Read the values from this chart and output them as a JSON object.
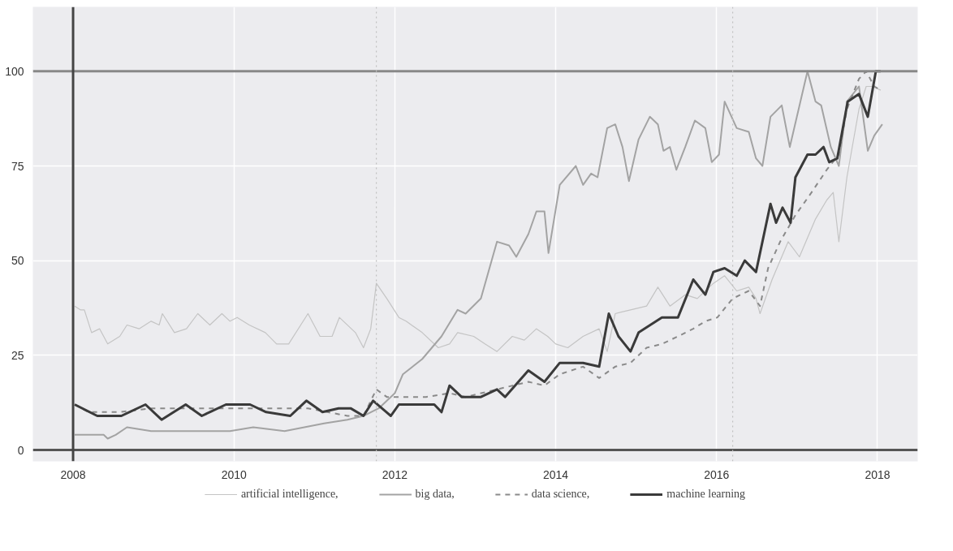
{
  "chart_data": {
    "type": "line",
    "xlim": [
      2007.5,
      2018.5
    ],
    "ylim": [
      -3,
      117
    ],
    "xticks": [
      2008,
      2010,
      2012,
      2014,
      2016,
      2018
    ],
    "yticks": [
      0,
      25,
      50,
      75,
      100
    ],
    "grid": true,
    "legend": "bottom",
    "ref_lines": [
      {
        "axis": "y",
        "value": 0,
        "color": "#555555",
        "line_style": "solid"
      },
      {
        "axis": "y",
        "value": 100,
        "color": "#888888",
        "line_style": "solid"
      },
      {
        "axis": "x",
        "value": 2008,
        "color": "#444444",
        "line_style": "solid"
      },
      {
        "axis": "x",
        "value": 2011.77,
        "color": "#c0c0c0",
        "line_style": "dotted"
      },
      {
        "axis": "x",
        "value": 2016.2,
        "color": "#c0c0c0",
        "line_style": "dotted"
      }
    ],
    "series": [
      {
        "name": "artificial intelligence,",
        "color": "#c4c4c4",
        "line_style": "solid",
        "x": [
          2008.02,
          2008.09,
          2008.14,
          2008.23,
          2008.33,
          2008.43,
          2008.58,
          2008.67,
          2008.82,
          2008.97,
          2009.07,
          2009.11,
          2009.26,
          2009.41,
          2009.55,
          2009.7,
          2009.85,
          2009.95,
          2010.04,
          2010.19,
          2010.39,
          2010.53,
          2010.68,
          2010.83,
          2010.92,
          2011.07,
          2011.22,
          2011.31,
          2011.51,
          2011.61,
          2011.7,
          2011.77,
          2011.9,
          2012.05,
          2012.14,
          2012.34,
          2012.54,
          2012.68,
          2012.78,
          2012.98,
          2013.12,
          2013.27,
          2013.46,
          2013.61,
          2013.76,
          2013.9,
          2014.0,
          2014.15,
          2014.34,
          2014.54,
          2014.64,
          2014.74,
          2014.93,
          2015.13,
          2015.27,
          2015.42,
          2015.61,
          2015.76,
          2015.96,
          2016.1,
          2016.25,
          2016.4,
          2016.49,
          2016.54,
          2016.69,
          2016.89,
          2017.03,
          2017.23,
          2017.37,
          2017.45,
          2017.52,
          2017.62,
          2017.77,
          2017.86,
          2017.94,
          2018.04
        ],
        "values": [
          38,
          37,
          37,
          31,
          32,
          28,
          30,
          33,
          32,
          34,
          33,
          36,
          31,
          32,
          36,
          33,
          36,
          34,
          35,
          33,
          31,
          28,
          28,
          33,
          36,
          30,
          30,
          35,
          31,
          27,
          32,
          44,
          40,
          35,
          34,
          31,
          27,
          28,
          31,
          30,
          28,
          26,
          30,
          29,
          32,
          30,
          28,
          27,
          30,
          32,
          26,
          36,
          37,
          38,
          43,
          38,
          41,
          40,
          44,
          46,
          42,
          43,
          40,
          36,
          45,
          55,
          51,
          61,
          66,
          68,
          55,
          72,
          90,
          96,
          96,
          95
        ]
      },
      {
        "name": "big data,",
        "color": "#a3a3a3",
        "line_style": "solid",
        "x": [
          2008.02,
          2008.38,
          2008.43,
          2008.53,
          2008.67,
          2008.97,
          2009.36,
          2009.95,
          2010.24,
          2010.63,
          2011.12,
          2011.41,
          2011.61,
          2011.8,
          2012.0,
          2012.1,
          2012.34,
          2012.58,
          2012.78,
          2012.88,
          2013.07,
          2013.27,
          2013.42,
          2013.51,
          2013.66,
          2013.76,
          2013.86,
          2013.91,
          2014.05,
          2014.25,
          2014.34,
          2014.44,
          2014.52,
          2014.64,
          2014.74,
          2014.83,
          2014.91,
          2015.03,
          2015.17,
          2015.27,
          2015.34,
          2015.42,
          2015.5,
          2015.61,
          2015.73,
          2015.86,
          2015.94,
          2016.03,
          2016.1,
          2016.25,
          2016.4,
          2016.49,
          2016.57,
          2016.67,
          2016.81,
          2016.91,
          2017.13,
          2017.23,
          2017.3,
          2017.42,
          2017.52,
          2017.62,
          2017.77,
          2017.88,
          2017.96,
          2018.06
        ],
        "values": [
          4,
          4,
          3,
          4,
          6,
          5,
          5,
          5,
          6,
          5,
          7,
          8,
          9,
          11,
          15,
          20,
          24,
          30,
          37,
          36,
          40,
          55,
          54,
          51,
          57,
          63,
          63,
          52,
          70,
          75,
          70,
          73,
          72,
          85,
          86,
          80,
          71,
          82,
          88,
          86,
          79,
          80,
          74,
          80,
          87,
          85,
          76,
          78,
          92,
          85,
          84,
          77,
          75,
          88,
          91,
          80,
          100,
          92,
          91,
          80,
          75,
          92,
          96,
          79,
          83,
          86
        ]
      },
      {
        "name": "data science,",
        "color": "#8a8a8a",
        "line_style": "dashed",
        "x": [
          2008.02,
          2008.19,
          2008.58,
          2008.97,
          2009.95,
          2010.92,
          2011.41,
          2011.61,
          2011.77,
          2011.9,
          2012.1,
          2012.39,
          2012.68,
          2012.88,
          2013.27,
          2013.66,
          2013.86,
          2014.05,
          2014.34,
          2014.54,
          2014.74,
          2014.93,
          2015.13,
          2015.32,
          2015.52,
          2015.71,
          2015.86,
          2016.01,
          2016.2,
          2016.4,
          2016.54,
          2016.64,
          2016.79,
          2016.98,
          2017.18,
          2017.37,
          2017.52,
          2017.62,
          2017.77,
          2017.86,
          2017.96,
          2018.04
        ],
        "values": [
          12,
          10,
          10,
          11,
          11,
          11,
          9,
          9,
          16,
          14,
          14,
          14,
          15,
          14,
          16,
          18,
          17,
          20,
          22,
          19,
          22,
          23,
          27,
          28,
          30,
          32,
          34,
          35,
          40,
          42,
          38,
          48,
          55,
          62,
          68,
          74,
          78,
          90,
          98,
          100,
          96,
          95
        ]
      },
      {
        "name": "machine learning",
        "color": "#3a3a3a",
        "line_style": "solid",
        "x": [
          2008.02,
          2008.3,
          2008.6,
          2008.9,
          2009.1,
          2009.4,
          2009.6,
          2009.9,
          2010.2,
          2010.4,
          2010.7,
          2010.9,
          2011.1,
          2011.3,
          2011.45,
          2011.61,
          2011.73,
          2011.95,
          2012.05,
          2012.49,
          2012.58,
          2012.68,
          2012.83,
          2013.07,
          2013.27,
          2013.37,
          2013.66,
          2013.86,
          2014.05,
          2014.34,
          2014.54,
          2014.66,
          2014.78,
          2014.93,
          2015.03,
          2015.32,
          2015.52,
          2015.71,
          2015.86,
          2015.96,
          2016.1,
          2016.25,
          2016.35,
          2016.49,
          2016.67,
          2016.74,
          2016.82,
          2016.92,
          2016.98,
          2017.13,
          2017.23,
          2017.33,
          2017.4,
          2017.5,
          2017.63,
          2017.77,
          2017.88,
          2017.98,
          2018.04
        ],
        "values": [
          12,
          9,
          9,
          12,
          8,
          12,
          9,
          12,
          12,
          10,
          9,
          13,
          10,
          11,
          11,
          9,
          13,
          9,
          12,
          12,
          10,
          17,
          14,
          14,
          16,
          14,
          21,
          18,
          23,
          23,
          22,
          36,
          30,
          26,
          31,
          35,
          35,
          45,
          41,
          47,
          48,
          46,
          50,
          47,
          65,
          60,
          64,
          60,
          72,
          78,
          78,
          80,
          76,
          77,
          92,
          94,
          88,
          100,
          100
        ]
      }
    ]
  }
}
